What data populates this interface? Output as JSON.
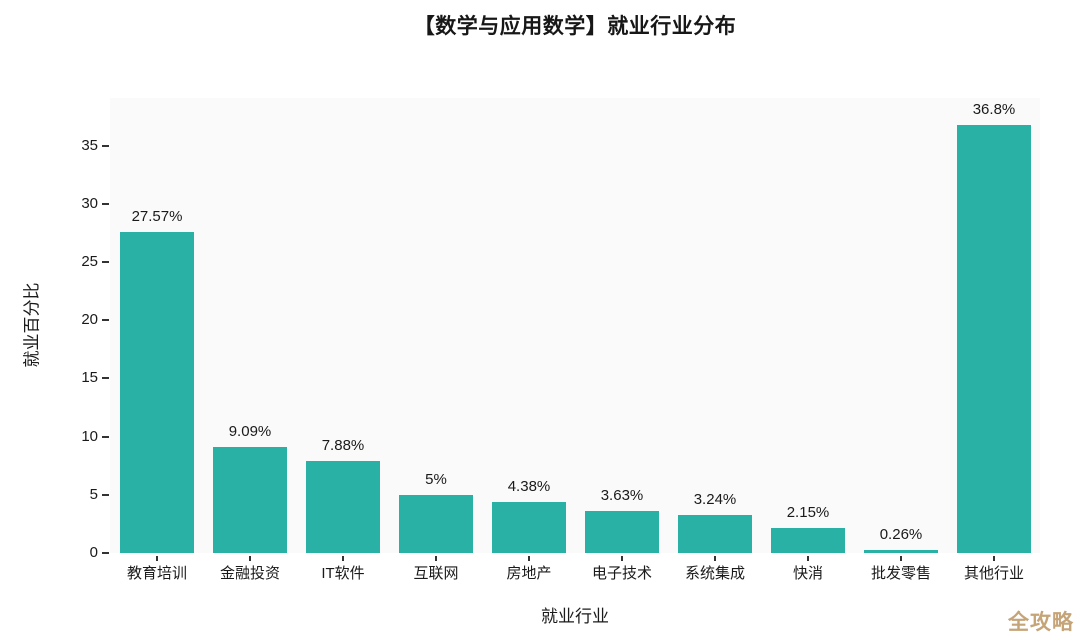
{
  "title": "【数学与应用数学】就业行业分布",
  "watermark": "全攻略",
  "colors": {
    "bar": "#2ab1a6",
    "plot_background": "#fafafa",
    "page_background": "#ffffff",
    "text": "#1a1a1a",
    "watermark": "#c5a478"
  },
  "chart_data": {
    "type": "bar",
    "title": "【数学与应用数学】就业行业分布",
    "xlabel": "就业行业",
    "ylabel": "就业百分比",
    "categories": [
      "教育培训",
      "金融投资",
      "IT软件",
      "互联网",
      "房地产",
      "电子技术",
      "系统集成",
      "快消",
      "批发零售",
      "其他行业"
    ],
    "values": [
      27.57,
      9.09,
      7.88,
      5,
      4.38,
      3.63,
      3.24,
      2.15,
      0.26,
      36.8
    ],
    "value_labels": [
      "27.57%",
      "9.09%",
      "7.88%",
      "5%",
      "4.38%",
      "3.63%",
      "3.24%",
      "2.15%",
      "0.26%",
      "36.8%"
    ],
    "yticks": [
      0,
      5,
      10,
      15,
      20,
      25,
      30,
      35
    ],
    "ylim": [
      0,
      39.1
    ],
    "grid": false,
    "legend": null,
    "bar_color": "#2ab1a6"
  }
}
